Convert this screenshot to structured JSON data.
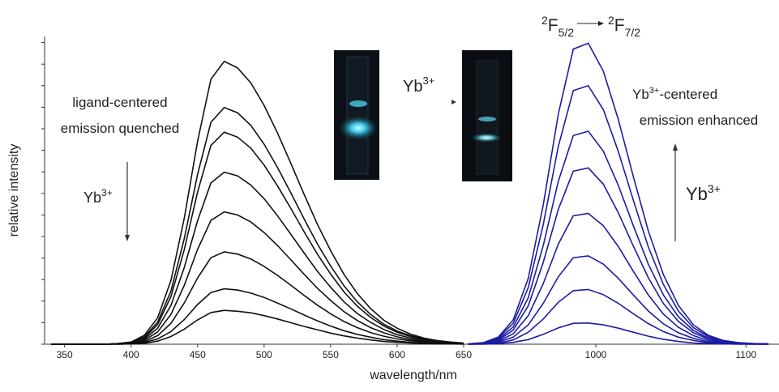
{
  "chart_data": [
    {
      "type": "line",
      "xlabel": "wavelength/nm",
      "ylabel": "relative intensity",
      "xlim": [
        335,
        650
      ],
      "xticks": [
        350,
        400,
        450,
        500,
        550,
        600,
        650
      ],
      "ylim": [
        0,
        100
      ],
      "yticks": [
        0,
        7,
        14,
        21,
        28,
        35,
        42,
        49,
        56,
        63,
        70,
        77,
        84,
        91,
        98
      ],
      "x": [
        340,
        350,
        360,
        370,
        380,
        390,
        400,
        410,
        420,
        430,
        440,
        450,
        460,
        470,
        480,
        490,
        500,
        510,
        520,
        530,
        540,
        550,
        560,
        570,
        580,
        590,
        600,
        610,
        620,
        630,
        640,
        650
      ],
      "series": [
        {
          "color": "#111111",
          "values": [
            0,
            0,
            0,
            0,
            0,
            0.2,
            0.7,
            2.9,
            8.6,
            20.7,
            40.9,
            65.9,
            86.1,
            91.9,
            89.8,
            84.9,
            77.6,
            68.7,
            58.9,
            48.8,
            39.0,
            30.4,
            22.7,
            16.5,
            11.6,
            7.8,
            5.2,
            3.3,
            2.0,
            1.2,
            0.7,
            0.4
          ]
        },
        {
          "color": "#111111",
          "values": [
            0,
            0,
            0,
            0,
            0,
            0.2,
            0.6,
            2.4,
            7.2,
            17.3,
            34.3,
            55.1,
            72.1,
            76.9,
            75.2,
            71.1,
            65.0,
            57.5,
            49.3,
            40.8,
            32.6,
            25.4,
            19.0,
            13.8,
            9.7,
            6.5,
            4.3,
            2.8,
            1.7,
            1.0,
            0.6,
            0.3
          ]
        },
        {
          "color": "#111111",
          "values": [
            0,
            0,
            0,
            0,
            0,
            0.1,
            0.6,
            2.1,
            6.4,
            15.5,
            30.7,
            49.4,
            64.6,
            68.9,
            67.3,
            63.7,
            58.2,
            51.5,
            44.2,
            36.6,
            29.3,
            22.8,
            17.0,
            12.4,
            8.7,
            5.9,
            3.9,
            2.5,
            1.5,
            0.9,
            0.6,
            0.3
          ]
        },
        {
          "color": "#111111",
          "values": [
            0,
            0,
            0,
            0,
            0,
            0.1,
            0.4,
            1.7,
            5.2,
            12.6,
            24.9,
            40.1,
            52.4,
            55.9,
            54.7,
            51.7,
            47.3,
            41.8,
            35.8,
            29.7,
            23.7,
            18.5,
            13.8,
            10.0,
            7.1,
            4.8,
            3.1,
            2.0,
            1.2,
            0.7,
            0.4,
            0.2
          ]
        },
        {
          "color": "#111111",
          "values": [
            0,
            0,
            0,
            0,
            0,
            0.1,
            0.3,
            1.3,
            4.0,
            9.7,
            19.1,
            30.8,
            40.2,
            43.0,
            42.0,
            39.7,
            36.3,
            32.1,
            27.5,
            22.8,
            18.2,
            14.2,
            10.6,
            7.7,
            5.4,
            3.7,
            2.4,
            1.5,
            0.9,
            0.6,
            0.3,
            0.2
          ]
        },
        {
          "color": "#111111",
          "values": [
            0,
            0,
            0,
            0,
            0,
            0.1,
            0.2,
            0.9,
            2.8,
            6.8,
            13.4,
            21.5,
            28.1,
            30.0,
            29.3,
            27.7,
            25.3,
            22.4,
            19.2,
            15.9,
            12.7,
            9.9,
            7.4,
            5.4,
            3.8,
            2.6,
            1.7,
            1.1,
            0.7,
            0.4,
            0.2,
            0.1
          ]
        },
        {
          "color": "#111111",
          "values": [
            0,
            0,
            0,
            0,
            0,
            0,
            0.1,
            0.6,
            1.7,
            4.1,
            8.0,
            12.9,
            16.8,
            18.0,
            17.6,
            16.6,
            15.2,
            13.4,
            11.5,
            9.5,
            7.6,
            5.9,
            4.4,
            3.2,
            2.3,
            1.5,
            1.0,
            0.6,
            0.4,
            0.2,
            0.1,
            0.1
          ]
        },
        {
          "color": "#111111",
          "values": [
            0,
            0,
            0,
            0,
            0,
            0,
            0.1,
            0.3,
            1.0,
            2.5,
            4.9,
            7.9,
            10.3,
            11.0,
            10.7,
            10.2,
            9.3,
            8.2,
            7.0,
            5.8,
            4.7,
            3.6,
            2.7,
            2.0,
            1.4,
            0.9,
            0.6,
            0.4,
            0.2,
            0.1,
            0.1,
            0.0
          ]
        }
      ]
    },
    {
      "type": "line",
      "xlim": [
        912,
        1122
      ],
      "xticks": [
        1000,
        1100
      ],
      "ylim": [
        0,
        100
      ],
      "x": [
        915,
        925,
        935,
        945,
        955,
        965,
        975,
        985,
        995,
        1005,
        1015,
        1025,
        1035,
        1045,
        1055,
        1065,
        1075,
        1085,
        1095,
        1105,
        1115
      ],
      "series": [
        {
          "color": "#1c1ca3",
          "values": [
            0.1,
            0.5,
            2.3,
            7.9,
            21.4,
            45.3,
            74.7,
            95.9,
            97.8,
            88.7,
            73.0,
            54.5,
            36.8,
            22.6,
            12.6,
            6.3,
            2.9,
            1.2,
            0.5,
            0.2,
            0.1
          ]
        },
        {
          "color": "#1c1ca3",
          "values": [
            0.1,
            0.4,
            2.0,
            6.8,
            18.4,
            38.9,
            64.2,
            82.4,
            84.0,
            76.2,
            62.6,
            46.8,
            31.6,
            19.4,
            10.8,
            5.4,
            2.5,
            1.0,
            0.4,
            0.2,
            0.1
          ]
        },
        {
          "color": "#1c1ca3",
          "values": [
            0.1,
            0.4,
            1.6,
            5.6,
            15.1,
            32.1,
            52.9,
            67.8,
            69.2,
            62.7,
            51.6,
            38.5,
            26.0,
            16.0,
            8.9,
            4.5,
            2.0,
            0.8,
            0.4,
            0.1,
            0.1
          ]
        },
        {
          "color": "#1c1ca3",
          "values": [
            0.1,
            0.3,
            1.3,
            4.6,
            12.5,
            26.6,
            43.8,
            56.2,
            57.3,
            52.0,
            42.7,
            31.9,
            21.6,
            13.2,
            7.4,
            3.7,
            1.7,
            0.7,
            0.3,
            0.1,
            0.1
          ]
        },
        {
          "color": "#1c1ca3",
          "values": [
            0,
            0.2,
            1.0,
            3.4,
            9.3,
            19.7,
            32.5,
            41.7,
            42.5,
            38.5,
            31.7,
            23.7,
            16.0,
            9.8,
            5.5,
            2.8,
            1.2,
            0.5,
            0.2,
            0.1,
            0
          ]
        },
        {
          "color": "#1c1ca3",
          "values": [
            0,
            0.1,
            0.7,
            2.3,
            6.3,
            13.3,
            21.9,
            28.1,
            28.7,
            26.0,
            21.4,
            16.0,
            10.8,
            6.6,
            3.7,
            1.9,
            0.8,
            0.3,
            0.1,
            0.1,
            0
          ]
        },
        {
          "color": "#1c1ca3",
          "values": [
            0,
            0.1,
            0.4,
            1.4,
            3.9,
            8.2,
            13.6,
            17.4,
            17.8,
            16.1,
            13.3,
            9.9,
            6.7,
            4.1,
            2.3,
            1.2,
            0.5,
            0.2,
            0.1,
            0,
            0
          ]
        },
        {
          "color": "#1c1ca3",
          "values": [
            0,
            0,
            0.2,
            0.6,
            1.5,
            3.2,
            5.3,
            6.8,
            6.9,
            6.3,
            5.2,
            3.9,
            2.6,
            1.6,
            0.9,
            0.4,
            0.2,
            0.1,
            0,
            0,
            0
          ]
        }
      ]
    }
  ],
  "annotations": {
    "ligand": [
      "ligand-centered",
      "emission quenched"
    ],
    "yb_left": {
      "base": "Yb",
      "sup": "3+"
    },
    "yb_middle": {
      "base": "Yb",
      "sup": "3+"
    },
    "yb_right": {
      "base": "Yb",
      "sup": "3+"
    },
    "yb_centered": {
      "base": "Yb",
      "sup": "3+",
      "rest": "-centered"
    },
    "enhanced": "emission enhanced",
    "transition": {
      "from": {
        "sup": "2",
        "base": "F",
        "sub": "5/2"
      },
      "to": {
        "sup": "2",
        "base": "F",
        "sub": "7/2"
      }
    }
  }
}
